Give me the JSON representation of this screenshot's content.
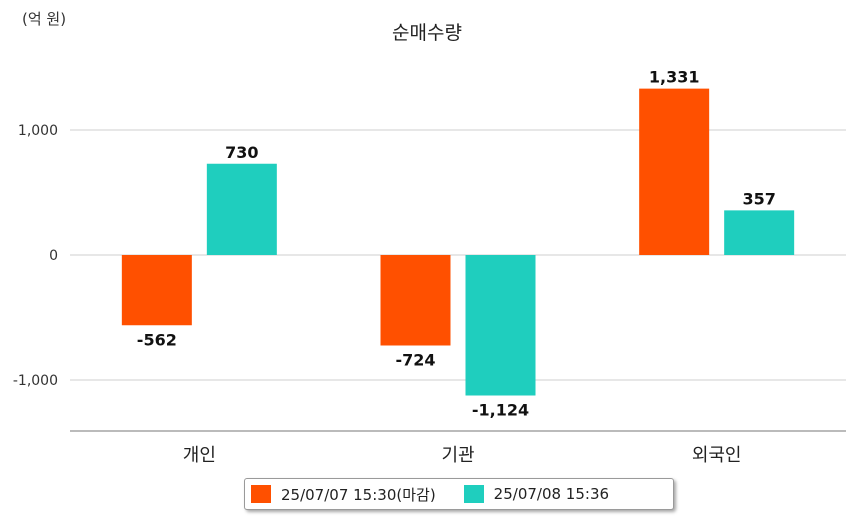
{
  "chart_data": {
    "type": "bar",
    "title": "순매수량",
    "unit_label": "(억 원)",
    "categories": [
      "개인",
      "기관",
      "외국인"
    ],
    "series": [
      {
        "name": "25/07/07 15:30(마감)",
        "color": "#ff5000",
        "values": [
          -562,
          -724,
          1331
        ],
        "labels": [
          "-562",
          "-724",
          "1,331"
        ]
      },
      {
        "name": "25/07/08 15:36",
        "color": "#1fcebe",
        "values": [
          730,
          -1124,
          357
        ],
        "labels": [
          "730",
          "-1,124",
          "357"
        ]
      }
    ],
    "y_ticks": [
      1000,
      0,
      -1000
    ],
    "y_tick_labels": [
      "1,000",
      "0",
      "-1,000"
    ],
    "ylim": [
      -1400,
      1650
    ],
    "grid": true,
    "legend_position": "bottom"
  }
}
